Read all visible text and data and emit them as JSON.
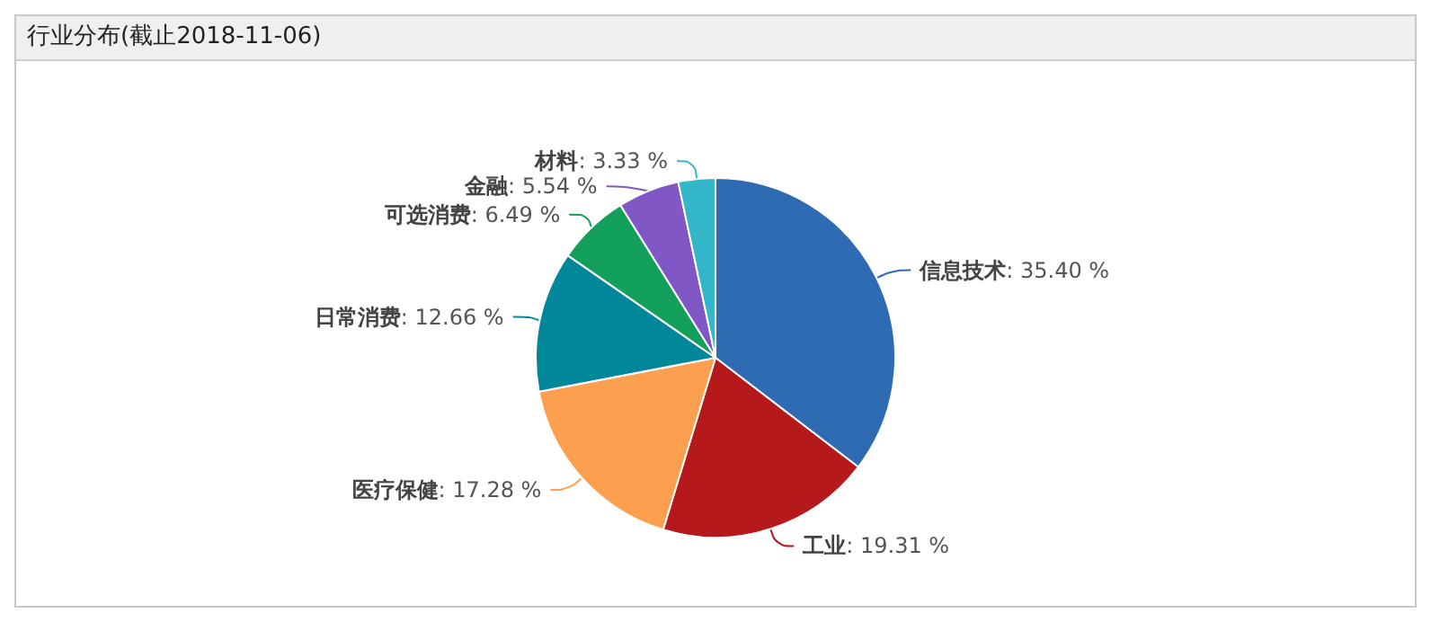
{
  "chart_data": {
    "type": "pie",
    "title": "行业分布(截止2018-11-06)",
    "categories": [
      "信息技术",
      "工业",
      "医疗保健",
      "日常消费",
      "可选消费",
      "金融",
      "材料"
    ],
    "values": [
      35.4,
      19.31,
      17.28,
      12.66,
      6.49,
      5.54,
      3.33
    ],
    "value_labels": [
      ": 35.40 %",
      ": 19.31 %",
      ": 17.28 %",
      ": 12.66 %",
      ": 6.49 %",
      ": 5.54 %",
      ": 3.33 %"
    ],
    "colors": [
      "#2e6bb3",
      "#b5191c",
      "#fca04f",
      "#00879a",
      "#13a05a",
      "#8057c5",
      "#33b7c8"
    ]
  }
}
